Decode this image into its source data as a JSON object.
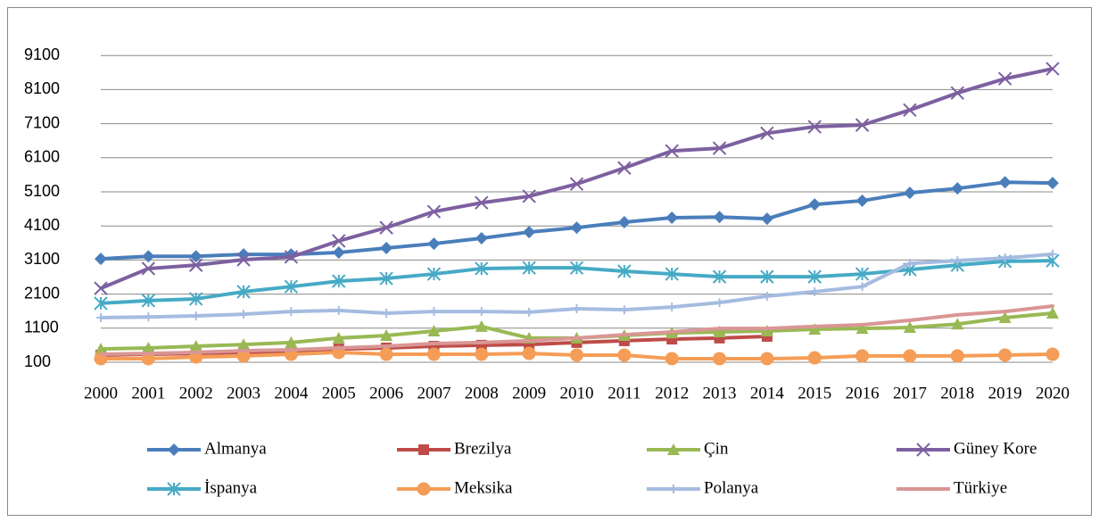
{
  "chart_data": {
    "type": "line",
    "categories": [
      "2000",
      "2001",
      "2002",
      "2003",
      "2004",
      "2005",
      "2006",
      "2007",
      "2008",
      "2009",
      "2010",
      "2011",
      "2012",
      "2013",
      "2014",
      "2015",
      "2016",
      "2017",
      "2018",
      "2019",
      "2020"
    ],
    "ylim": [
      100,
      10100
    ],
    "yticks": [
      100,
      1100,
      2100,
      3100,
      4100,
      5100,
      6100,
      7100,
      8100,
      9100
    ],
    "grid": true,
    "legend": "bottom",
    "series": [
      {
        "name": "Almanya",
        "color": "#4a7ebb",
        "marker": "diamond",
        "values": [
          3135,
          3210,
          3210,
          3265,
          3265,
          3320,
          3450,
          3580,
          3740,
          3920,
          4050,
          4210,
          4340,
          4360,
          4310,
          4730,
          4840,
          5070,
          5200,
          5380,
          5360
        ]
      },
      {
        "name": "Brezilya",
        "color": "#be4b48",
        "marker": "square",
        "values": [
          310,
          335,
          360,
          390,
          415,
          490,
          520,
          570,
          600,
          620,
          680,
          730,
          780,
          810,
          860,
          null,
          null,
          null,
          null,
          null,
          null
        ]
      },
      {
        "name": "Çin",
        "color": "#98b954",
        "marker": "triangle",
        "values": [
          490,
          520,
          570,
          620,
          680,
          810,
          885,
          1015,
          1150,
          810,
          810,
          885,
          960,
          990,
          1015,
          1070,
          1090,
          1120,
          1220,
          1410,
          1540
        ]
      },
      {
        "name": "Güney Kore",
        "color": "#7d60a0",
        "marker": "x",
        "values": [
          2270,
          2850,
          2950,
          3110,
          3190,
          3660,
          4050,
          4520,
          4780,
          4970,
          5330,
          5800,
          6300,
          6380,
          6820,
          7010,
          7060,
          7500,
          8000,
          8420,
          8710
        ]
      },
      {
        "name": "İspanya",
        "color": "#46aac5",
        "marker": "star",
        "values": [
          1830,
          1910,
          1960,
          2170,
          2320,
          2480,
          2560,
          2690,
          2850,
          2870,
          2870,
          2770,
          2690,
          2610,
          2610,
          2610,
          2690,
          2820,
          2950,
          3060,
          3080
        ]
      },
      {
        "name": "Meksika",
        "color": "#f59d56",
        "marker": "circle",
        "values": [
          205,
          205,
          255,
          285,
          335,
          390,
          335,
          335,
          335,
          360,
          310,
          310,
          205,
          205,
          205,
          230,
          285,
          285,
          285,
          310,
          335
        ]
      },
      {
        "name": "Polanya",
        "color": "#a5bce0",
        "marker": "plus",
        "values": [
          1410,
          1430,
          1460,
          1510,
          1590,
          1620,
          1540,
          1590,
          1590,
          1570,
          1670,
          1640,
          1720,
          1850,
          2040,
          2170,
          2320,
          3000,
          3080,
          3160,
          3270
        ]
      },
      {
        "name": "Türkiye",
        "color": "#d99694",
        "marker": "none",
        "values": [
          335,
          360,
          390,
          440,
          465,
          520,
          570,
          650,
          680,
          730,
          810,
          910,
          990,
          1090,
          1090,
          1150,
          1200,
          1330,
          1490,
          1590,
          1750
        ]
      }
    ]
  }
}
